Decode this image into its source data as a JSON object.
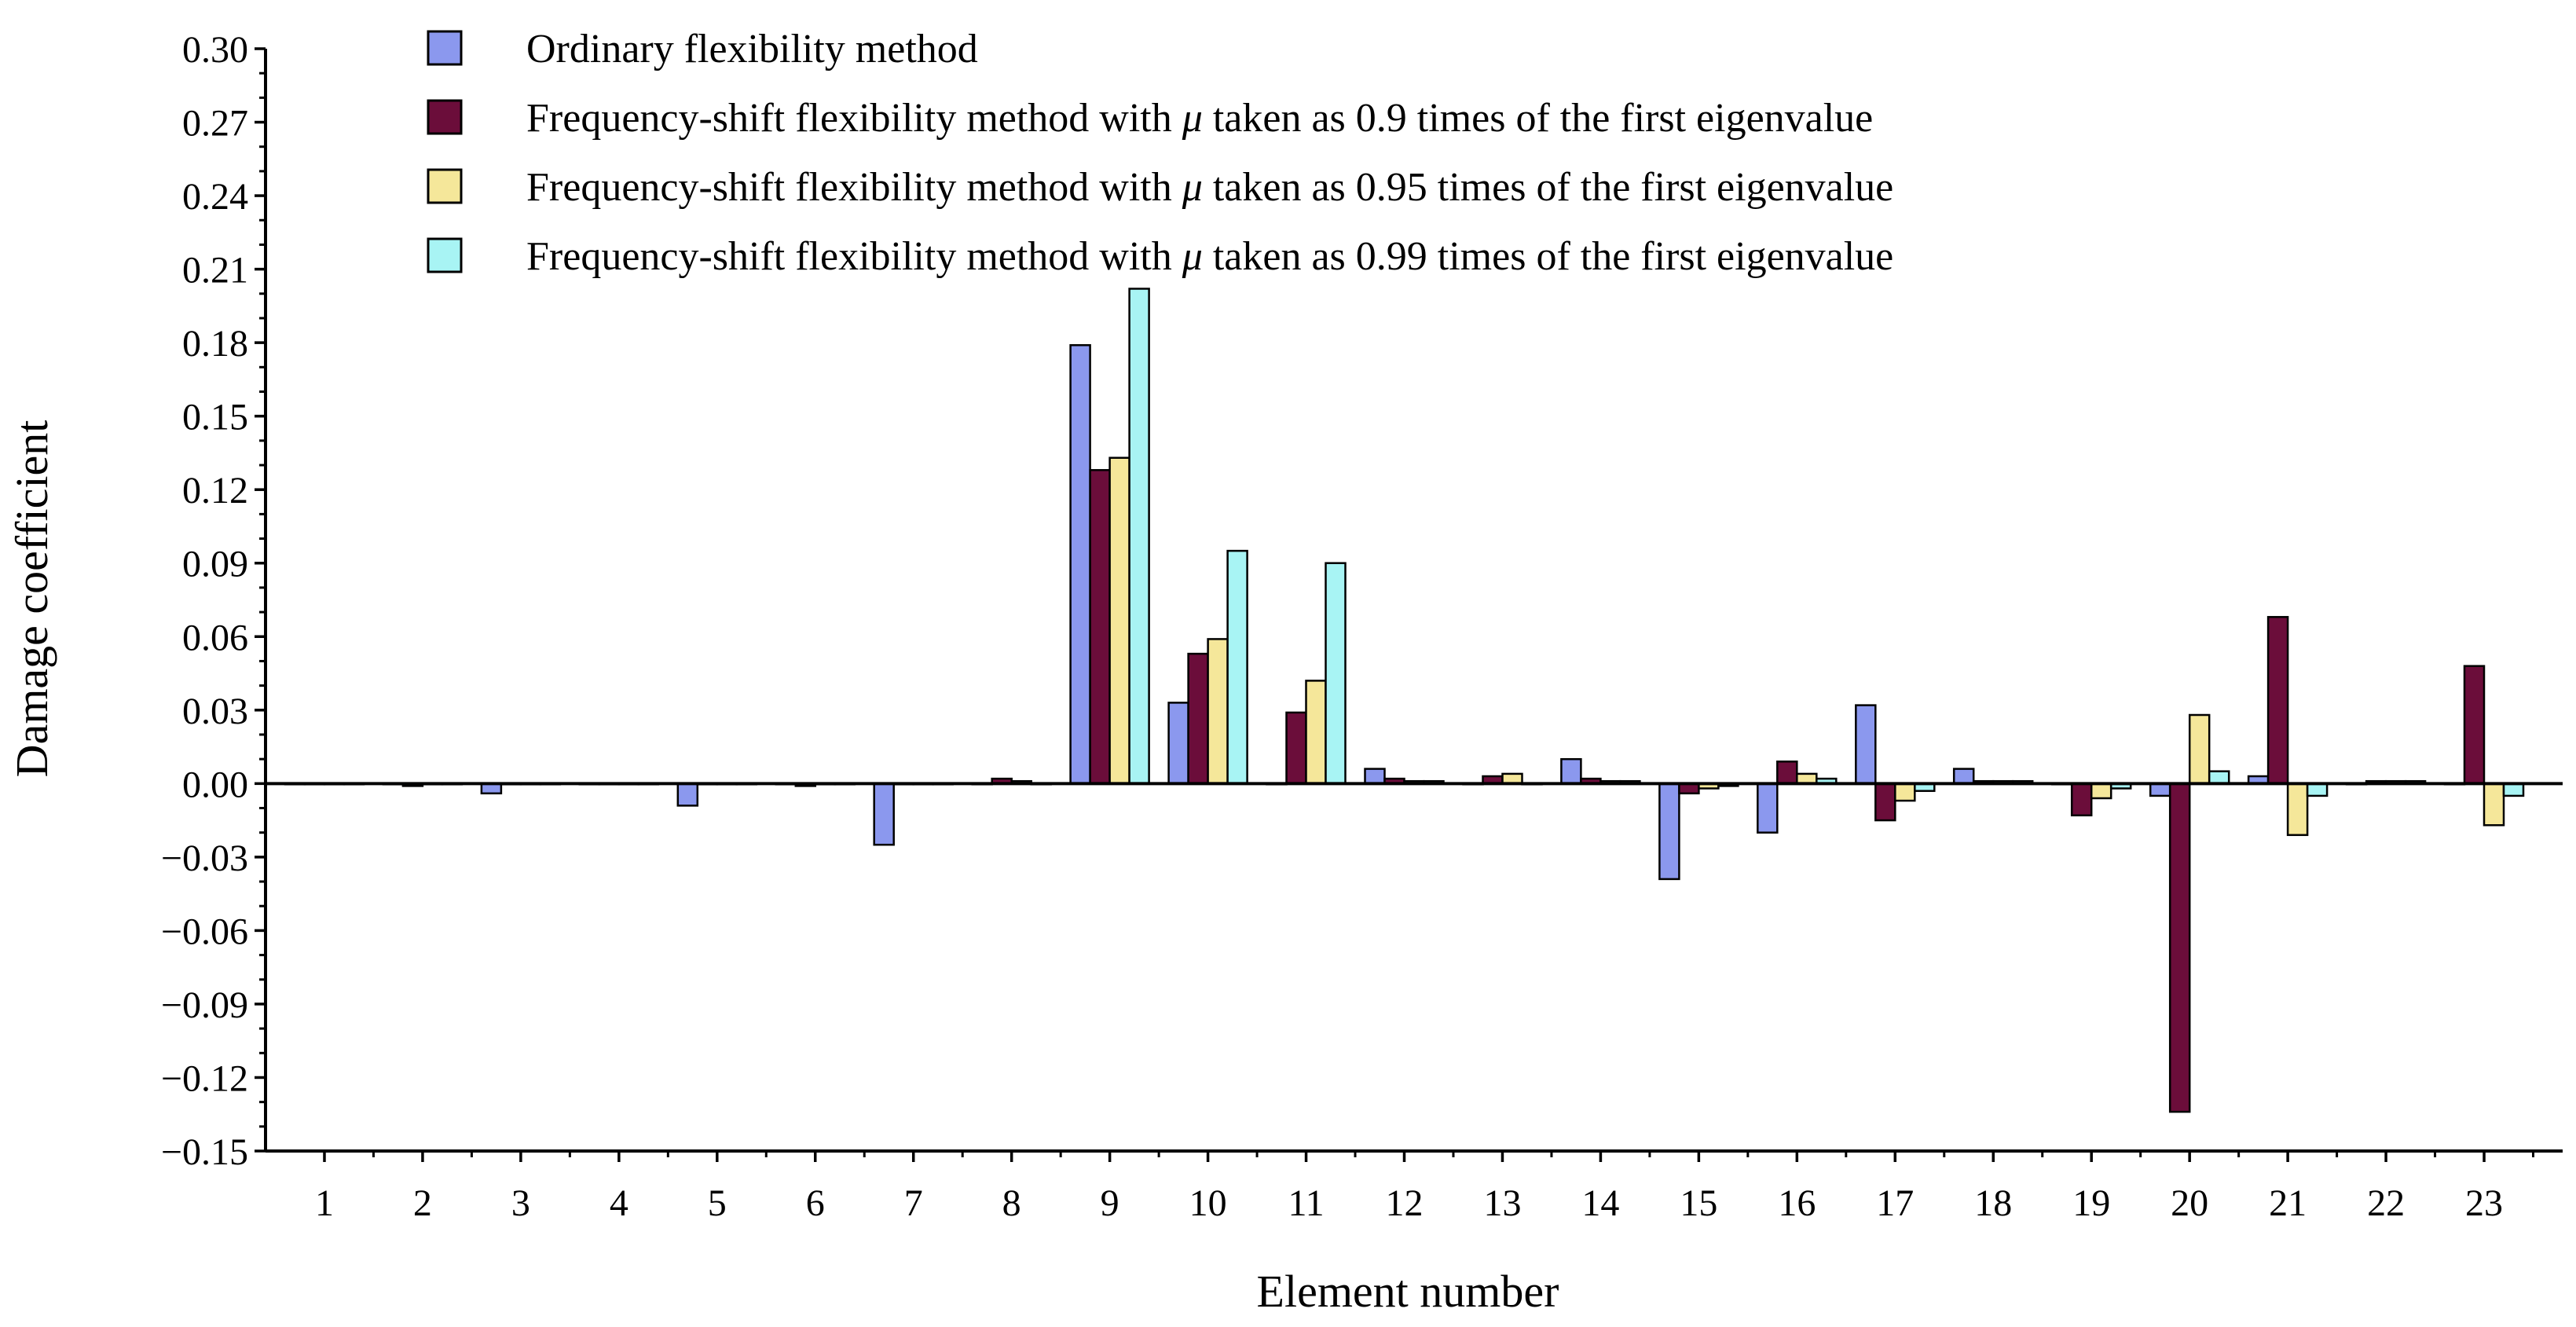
{
  "chart_data": {
    "type": "bar",
    "title": "",
    "xlabel": "Element number",
    "ylabel": "Damage coefficient",
    "ylim": [
      -0.15,
      0.3
    ],
    "y_ticks": [
      0.3,
      0.27,
      0.24,
      0.21,
      0.18,
      0.15,
      0.12,
      0.09,
      0.06,
      0.03,
      0.0,
      -0.03,
      -0.06,
      -0.09,
      -0.12,
      -0.15
    ],
    "y_tick_labels": [
      "0.30",
      "0.27",
      "0.24",
      "0.21",
      "0.18",
      "0.15",
      "0.12",
      "0.09",
      "0.06",
      "0.03",
      "0.00",
      "−0.03",
      "−0.06",
      "−0.09",
      "−0.12",
      "−0.15"
    ],
    "categories": [
      "1",
      "2",
      "3",
      "4",
      "5",
      "6",
      "7",
      "8",
      "9",
      "10",
      "11",
      "12",
      "13",
      "14",
      "15",
      "16",
      "17",
      "18",
      "19",
      "20",
      "21",
      "22",
      "23"
    ],
    "legend_position": "top-left",
    "series": [
      {
        "name": "Ordinary flexibility method",
        "name_prefix": "Ordinary flexibility method",
        "name_symbol": "",
        "name_suffix": "",
        "color": "#8b98ee",
        "values": [
          0.0,
          0.0,
          -0.004,
          0.0,
          -0.009,
          0.0,
          -0.025,
          0.0,
          0.179,
          0.033,
          0.0,
          0.006,
          0.0,
          0.01,
          -0.039,
          -0.02,
          0.032,
          0.006,
          0.0,
          -0.005,
          0.003,
          0.0,
          0.0
        ]
      },
      {
        "name": "Frequency-shift flexibility method with μ taken as 0.9 times of the first eigenvalue",
        "name_prefix": "Frequency-shift flexibility method with ",
        "name_symbol": "μ",
        "name_suffix": " taken as 0.9 times of the first eigenvalue",
        "color": "#6b0d3a",
        "values": [
          0.0,
          -0.001,
          0.0,
          0.0,
          0.0,
          -0.001,
          0.0,
          0.002,
          0.128,
          0.053,
          0.029,
          0.002,
          0.003,
          0.002,
          -0.004,
          0.009,
          -0.015,
          0.001,
          -0.013,
          -0.134,
          0.068,
          0.001,
          0.048
        ]
      },
      {
        "name": "Frequency-shift flexibility method with μ taken as 0.95 times of the first eigenvalue",
        "name_prefix": "Frequency-shift flexibility method with ",
        "name_symbol": "μ",
        "name_suffix": " taken as 0.95 times of the first eigenvalue",
        "color": "#f5e79a",
        "values": [
          0.0,
          0.0,
          0.0,
          0.0,
          0.0,
          0.0,
          0.0,
          0.001,
          0.133,
          0.059,
          0.042,
          0.001,
          0.004,
          0.001,
          -0.002,
          0.004,
          -0.007,
          0.001,
          -0.006,
          0.028,
          -0.021,
          0.001,
          -0.017
        ]
      },
      {
        "name": "Frequency-shift flexibility method with μ taken as 0.99 times of the first eigenvalue",
        "name_prefix": "Frequency-shift flexibility method with ",
        "name_symbol": "μ",
        "name_suffix": " taken as 0.99 times of the first eigenvalue",
        "color": "#a8f4f4",
        "values": [
          0.0,
          0.0,
          0.0,
          0.0,
          0.0,
          0.0,
          0.0,
          0.0,
          0.202,
          0.095,
          0.09,
          0.001,
          0.0,
          0.001,
          -0.001,
          0.002,
          -0.003,
          0.001,
          -0.002,
          0.005,
          -0.005,
          0.001,
          -0.005
        ]
      }
    ]
  }
}
